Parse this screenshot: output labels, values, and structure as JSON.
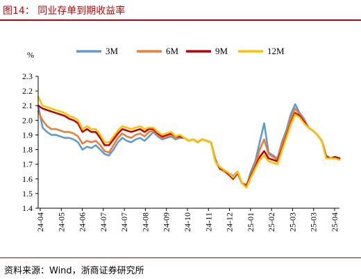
{
  "figure": {
    "title": "图14：  同业存单到期收益率",
    "source": "资料来源：Wind，浙商证券研究所"
  },
  "chart_data": {
    "type": "line",
    "ylabel": "%",
    "ylim": [
      1.4,
      2.3
    ],
    "yticks": [
      "1.4",
      "1.5",
      "1.6",
      "1.7",
      "1.8",
      "1.9",
      "2.0",
      "2.1",
      "2.2",
      "2.3"
    ],
    "x_ticklabels": [
      "24-04",
      "24-05",
      "24-06",
      "24-07",
      "24-07",
      "24-08",
      "24-09",
      "24-10",
      "24-11",
      "24-12",
      "25-01",
      "25-02",
      "25-03",
      "25-03",
      "25-04"
    ],
    "grid": false,
    "legend_position": "top",
    "series": [
      {
        "name": "3M",
        "color": "#5b9bd5",
        "x": [
          0,
          1,
          2,
          3,
          4,
          5,
          6,
          7,
          8,
          9,
          10,
          11,
          12,
          13,
          14,
          15,
          16,
          17,
          18,
          19,
          20,
          21,
          22,
          23,
          24,
          25,
          26,
          27,
          28,
          29,
          30,
          31,
          32,
          33,
          34,
          35,
          36,
          37,
          38,
          39,
          40,
          41,
          42,
          43,
          44,
          45,
          46,
          47,
          48,
          49,
          50,
          51,
          52,
          53,
          54,
          55,
          56,
          57,
          58,
          59,
          60,
          61,
          62,
          63,
          64,
          65,
          66,
          67,
          68
        ],
        "values": [
          2.1,
          1.95,
          1.92,
          1.9,
          1.9,
          1.89,
          1.88,
          1.88,
          1.87,
          1.85,
          1.8,
          1.82,
          1.81,
          1.83,
          1.8,
          1.77,
          1.76,
          1.8,
          1.85,
          1.88,
          1.86,
          1.85,
          1.87,
          1.88,
          1.86,
          1.89,
          1.92,
          1.89,
          1.87,
          1.88,
          1.89,
          1.87,
          1.88,
          1.88,
          1.86,
          1.87,
          1.85,
          1.87,
          1.86,
          1.85,
          1.72,
          1.68,
          1.66,
          1.64,
          1.62,
          1.65,
          1.57,
          1.55,
          1.65,
          1.72,
          1.85,
          1.98,
          1.78,
          1.76,
          1.74,
          1.85,
          1.93,
          2.04,
          2.11,
          2.05,
          2.01,
          1.95,
          1.93,
          1.9,
          1.86,
          1.76,
          1.74,
          1.75,
          1.74
        ]
      },
      {
        "name": "6M",
        "color": "#ed7d31",
        "x": [
          0,
          1,
          2,
          3,
          4,
          5,
          6,
          7,
          8,
          9,
          10,
          11,
          12,
          13,
          14,
          15,
          16,
          17,
          18,
          19,
          20,
          21,
          22,
          23,
          24,
          25,
          26,
          27,
          28,
          29,
          30,
          31,
          32,
          33,
          34,
          35,
          36,
          37,
          38,
          39,
          40,
          41,
          42,
          43,
          44,
          45,
          46,
          47,
          48,
          49,
          50,
          51,
          52,
          53,
          54,
          55,
          56,
          57,
          58,
          59,
          60,
          61,
          62,
          63,
          64,
          65,
          66,
          67,
          68
        ],
        "values": [
          2.06,
          2.0,
          1.96,
          1.94,
          1.94,
          1.93,
          1.92,
          1.92,
          1.91,
          1.89,
          1.84,
          1.86,
          1.85,
          1.86,
          1.83,
          1.79,
          1.78,
          1.83,
          1.88,
          1.91,
          1.89,
          1.88,
          1.9,
          1.91,
          1.89,
          1.92,
          1.93,
          1.9,
          1.88,
          1.89,
          1.9,
          1.88,
          1.89,
          1.88,
          1.86,
          1.87,
          1.85,
          1.87,
          1.86,
          1.85,
          1.72,
          1.67,
          1.65,
          1.63,
          1.61,
          1.64,
          1.57,
          1.56,
          1.63,
          1.7,
          1.8,
          1.87,
          1.77,
          1.75,
          1.73,
          1.83,
          1.91,
          2.01,
          2.08,
          2.04,
          2.0,
          1.95,
          1.93,
          1.9,
          1.86,
          1.75,
          1.74,
          1.75,
          1.74
        ]
      },
      {
        "name": "9M",
        "color": "#c00000",
        "x": [
          0,
          1,
          2,
          3,
          4,
          5,
          6,
          7,
          8,
          9,
          10,
          11,
          12,
          13,
          14,
          15,
          16,
          17,
          18,
          19,
          20,
          21,
          22,
          23,
          24,
          25,
          26,
          27,
          28,
          29,
          30,
          31,
          32,
          33,
          34,
          35,
          36,
          37,
          38,
          39,
          40,
          41,
          42,
          43,
          44,
          45,
          46,
          47,
          48,
          49,
          50,
          51,
          52,
          53,
          54,
          55,
          56,
          57,
          58,
          59,
          60,
          61,
          62,
          63,
          64,
          65,
          66,
          67,
          68
        ],
        "values": [
          2.1,
          2.08,
          2.07,
          2.06,
          2.05,
          2.04,
          2.03,
          2.01,
          2.0,
          1.98,
          1.92,
          1.94,
          1.92,
          1.92,
          1.88,
          1.83,
          1.83,
          1.87,
          1.91,
          1.94,
          1.93,
          1.92,
          1.93,
          1.94,
          1.92,
          1.94,
          1.94,
          1.91,
          1.89,
          1.9,
          1.91,
          1.89,
          1.89,
          1.88,
          1.86,
          1.87,
          1.85,
          1.87,
          1.86,
          1.85,
          1.73,
          1.67,
          1.66,
          1.63,
          1.6,
          1.64,
          1.57,
          1.55,
          1.62,
          1.68,
          1.75,
          1.79,
          1.74,
          1.73,
          1.72,
          1.8,
          1.89,
          1.98,
          2.05,
          2.03,
          1.99,
          1.95,
          1.93,
          1.9,
          1.86,
          1.75,
          1.74,
          1.75,
          1.74
        ]
      },
      {
        "name": "12M",
        "color": "#ffc000",
        "x": [
          0,
          1,
          2,
          3,
          4,
          5,
          6,
          7,
          8,
          9,
          10,
          11,
          12,
          13,
          14,
          15,
          16,
          17,
          18,
          19,
          20,
          21,
          22,
          23,
          24,
          25,
          26,
          27,
          28,
          29,
          30,
          31,
          32,
          33,
          34,
          35,
          36,
          37,
          38,
          39,
          40,
          41,
          42,
          43,
          44,
          45,
          46,
          47,
          48,
          49,
          50,
          51,
          52,
          53,
          54,
          55,
          56,
          57,
          58,
          59,
          60,
          61,
          62,
          63,
          64,
          65,
          66,
          67,
          68
        ],
        "values": [
          2.16,
          2.1,
          2.09,
          2.08,
          2.07,
          2.06,
          2.05,
          2.03,
          2.02,
          2.0,
          1.94,
          1.96,
          1.94,
          1.94,
          1.9,
          1.85,
          1.85,
          1.89,
          1.93,
          1.96,
          1.95,
          1.94,
          1.95,
          1.96,
          1.94,
          1.95,
          1.95,
          1.92,
          1.9,
          1.91,
          1.92,
          1.89,
          1.9,
          1.88,
          1.86,
          1.87,
          1.85,
          1.87,
          1.86,
          1.85,
          1.72,
          1.68,
          1.66,
          1.64,
          1.61,
          1.65,
          1.57,
          1.54,
          1.61,
          1.67,
          1.73,
          1.76,
          1.72,
          1.71,
          1.7,
          1.79,
          1.88,
          1.97,
          2.04,
          2.02,
          1.98,
          1.95,
          1.93,
          1.9,
          1.86,
          1.74,
          1.74,
          1.74,
          1.73
        ]
      }
    ]
  }
}
